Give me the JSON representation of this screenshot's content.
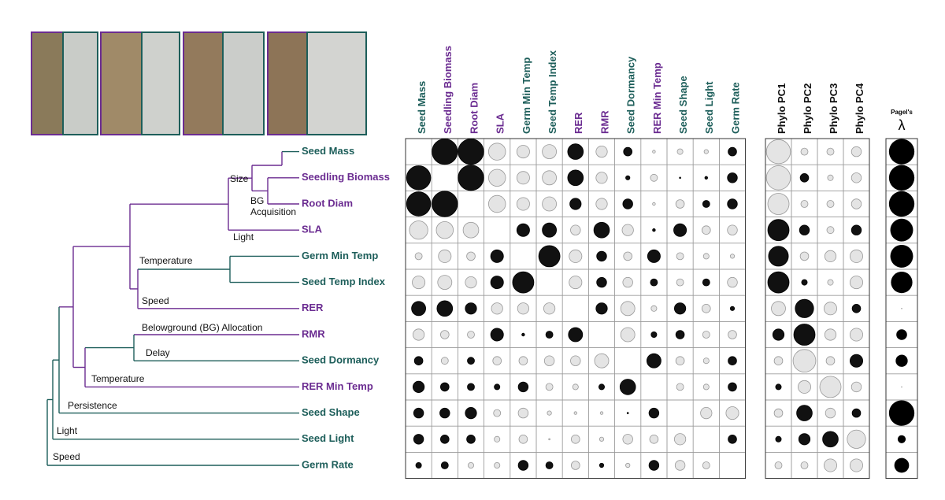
{
  "traits": [
    {
      "name": "Seed Mass",
      "color": "#1d5e5a"
    },
    {
      "name": "Seedling Biomass",
      "color": "#6b2c91"
    },
    {
      "name": "Root Diam",
      "color": "#6b2c91"
    },
    {
      "name": "SLA",
      "color": "#6b2c91"
    },
    {
      "name": "Germ Min Temp",
      "color": "#1d5e5a"
    },
    {
      "name": "Seed Temp Index",
      "color": "#1d5e5a"
    },
    {
      "name": "RER",
      "color": "#6b2c91"
    },
    {
      "name": "RMR",
      "color": "#6b2c91"
    },
    {
      "name": "Seed Dormancy",
      "color": "#1d5e5a"
    },
    {
      "name": "RER Min Temp",
      "color": "#6b2c91"
    },
    {
      "name": "Seed Shape",
      "color": "#1d5e5a"
    },
    {
      "name": "Seed Light",
      "color": "#1d5e5a"
    },
    {
      "name": "Germ Rate",
      "color": "#1d5e5a"
    }
  ],
  "phylo_columns": [
    "Phylo PC1",
    "Phylo PC2",
    "Phylo PC3",
    "Phylo PC4"
  ],
  "lambda_header": {
    "top": "Pagel's",
    "symbol": "λ"
  },
  "tree_labels": [
    "Size",
    "BG",
    "Acquisition",
    "Light",
    "Temperature",
    "Speed",
    "Belowground (BG) Allocation",
    "Delay",
    "Temperature",
    "Persistence",
    "Light",
    "Speed"
  ],
  "correlations": [
    [
      null,
      0.9,
      0.9,
      -0.6,
      -0.45,
      -0.5,
      0.55,
      -0.4,
      0.3,
      -0.1,
      -0.2,
      -0.15,
      0.3
    ],
    [
      0.85,
      null,
      0.9,
      -0.6,
      -0.45,
      -0.5,
      0.55,
      -0.4,
      0.15,
      -0.25,
      0.05,
      0.1,
      0.35
    ],
    [
      0.85,
      0.9,
      null,
      -0.6,
      -0.45,
      -0.5,
      0.4,
      -0.4,
      0.35,
      -0.1,
      -0.3,
      0.25,
      0.35
    ],
    [
      -0.65,
      -0.6,
      -0.55,
      null,
      0.45,
      0.5,
      -0.35,
      0.55,
      -0.4,
      0.1,
      0.45,
      -0.3,
      -0.35
    ],
    [
      -0.25,
      -0.45,
      -0.3,
      0.45,
      null,
      0.75,
      -0.45,
      0.35,
      -0.3,
      0.45,
      -0.25,
      -0.2,
      -0.15
    ],
    [
      -0.45,
      -0.5,
      -0.4,
      0.45,
      0.75,
      null,
      -0.45,
      0.35,
      -0.35,
      0.25,
      -0.25,
      0.25,
      -0.35
    ],
    [
      0.5,
      0.55,
      0.4,
      -0.4,
      -0.4,
      -0.4,
      null,
      0.4,
      -0.5,
      -0.2,
      0.4,
      -0.3,
      0.15
    ],
    [
      -0.4,
      -0.3,
      -0.25,
      0.45,
      0.1,
      0.25,
      0.5,
      null,
      -0.5,
      0.2,
      0.3,
      -0.25,
      -0.3
    ],
    [
      0.3,
      -0.25,
      0.25,
      -0.3,
      -0.3,
      -0.35,
      -0.35,
      -0.5,
      null,
      0.5,
      -0.3,
      -0.2,
      0.3
    ],
    [
      0.4,
      0.3,
      0.25,
      0.2,
      0.35,
      -0.25,
      -0.2,
      0.2,
      0.55,
      null,
      -0.25,
      -0.2,
      0.3
    ],
    [
      0.35,
      0.35,
      0.4,
      -0.25,
      -0.35,
      -0.15,
      -0.1,
      -0.1,
      0.05,
      0.35,
      null,
      -0.4,
      -0.45
    ],
    [
      0.35,
      0.3,
      0.3,
      -0.2,
      -0.3,
      -0.05,
      -0.3,
      -0.15,
      -0.35,
      -0.3,
      -0.4,
      null,
      0.3
    ],
    [
      0.2,
      0.25,
      -0.2,
      -0.2,
      0.35,
      0.25,
      -0.3,
      0.15,
      -0.15,
      0.35,
      -0.35,
      -0.25,
      null
    ]
  ],
  "phylo": [
    [
      -0.85,
      -0.25,
      -0.25,
      -0.35
    ],
    [
      -0.85,
      0.3,
      -0.2,
      -0.35
    ],
    [
      -0.75,
      -0.25,
      -0.25,
      -0.35
    ],
    [
      0.75,
      0.35,
      -0.25,
      0.35
    ],
    [
      0.7,
      -0.3,
      -0.4,
      -0.45
    ],
    [
      0.75,
      0.2,
      -0.2,
      -0.45
    ],
    [
      -0.5,
      0.65,
      -0.45,
      0.3
    ],
    [
      0.4,
      0.75,
      -0.4,
      -0.45
    ],
    [
      -0.3,
      -0.8,
      -0.3,
      0.45
    ],
    [
      0.2,
      -0.45,
      -0.75,
      -0.35
    ],
    [
      -0.3,
      0.55,
      -0.35,
      0.3
    ],
    [
      0.2,
      0.4,
      0.55,
      -0.65
    ],
    [
      -0.25,
      -0.25,
      -0.45,
      -0.45
    ]
  ],
  "lambda": [
    0.95,
    0.95,
    0.95,
    0.85,
    0.85,
    0.8,
    0.03,
    0.4,
    0.45,
    0.03,
    0.95,
    0.3,
    0.55
  ]
}
